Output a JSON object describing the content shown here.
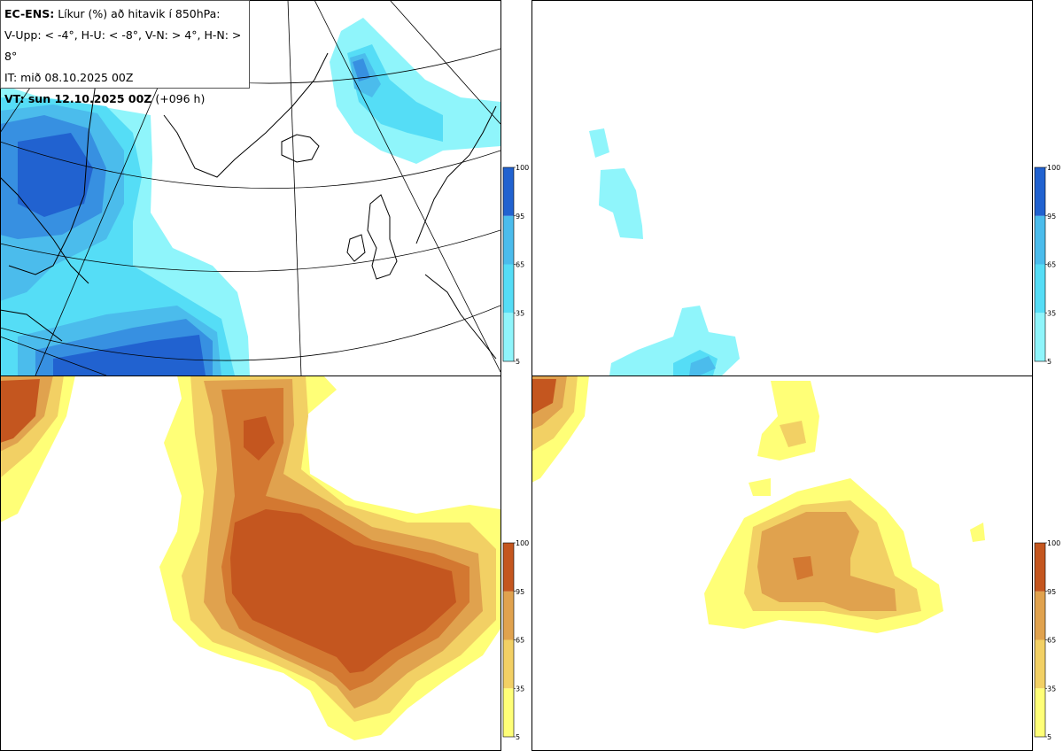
{
  "header": {
    "model": "EC-ENS:",
    "title_rest": "Líkur (%) að hitavik í 850hPa:",
    "thresholds": "V-Upp: < -4°, H-U: < -8°, V-N: > 4°, H-N: > 8°",
    "init_time": "IT: mið 08.10.2025 00Z",
    "valid_prefix": "VT: sun 12.10.2025 00Z",
    "lead_time": "(+096 h)"
  },
  "panels": [
    {
      "id": "V-Upp",
      "position": "top-left",
      "palette": "cold"
    },
    {
      "id": "H-U",
      "position": "top-right",
      "palette": "cold"
    },
    {
      "id": "V-N",
      "position": "bottom-left",
      "palette": "warm"
    },
    {
      "id": "H-N",
      "position": "bottom-right",
      "palette": "warm"
    }
  ],
  "colorbar": {
    "ticks": [
      "100",
      "95",
      "65",
      "35",
      "5"
    ],
    "cold_colors": [
      "#8ff5fb",
      "#55ddf6",
      "#4bbcec",
      "#3790e1",
      "#2162d0"
    ],
    "warm_colors": [
      "#ffff77",
      "#f2d064",
      "#e0a24e",
      "#d37831",
      "#c4561f"
    ]
  }
}
